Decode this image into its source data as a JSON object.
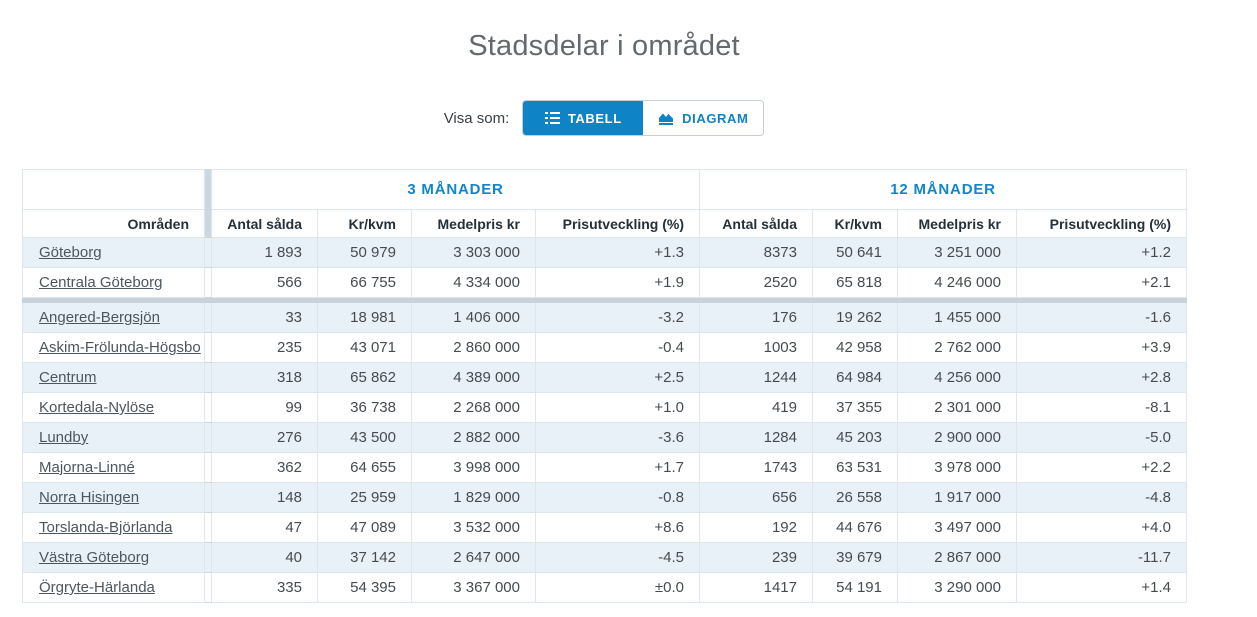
{
  "page": {
    "title": "Stadsdelar i området"
  },
  "controls": {
    "label": "Visa som:",
    "buttons": [
      {
        "label": "TABELL",
        "icon": "list-icon",
        "active": true
      },
      {
        "label": "DIAGRAM",
        "icon": "area-chart-icon",
        "active": false
      }
    ]
  },
  "colors": {
    "accent_blue": "#0e83c5",
    "row_alt_background": "#e9f1f8",
    "divider_gray": "#ccd8e1",
    "title_gray": "#63696f"
  },
  "table": {
    "row_header": "Områden",
    "group_headers": [
      "3 MÅNADER",
      "12 MÅNADER"
    ],
    "column_headers": [
      "Antal sålda",
      "Kr/kvm",
      "Medelpris kr",
      "Prisutveckling (%)"
    ],
    "summary_rows": [
      {
        "name": "Göteborg",
        "m3": [
          "1 893",
          "50 979",
          "3 303 000",
          "+1.3"
        ],
        "m12": [
          "8373",
          "50 641",
          "3 251 000",
          "+1.2"
        ]
      },
      {
        "name": "Centrala Göteborg",
        "m3": [
          "566",
          "66 755",
          "4 334 000",
          "+1.9"
        ],
        "m12": [
          "2520",
          "65 818",
          "4 246 000",
          "+2.1"
        ]
      }
    ],
    "district_rows": [
      {
        "name": "Angered-Bergsjön",
        "m3": [
          "33",
          "18 981",
          "1 406 000",
          "-3.2"
        ],
        "m12": [
          "176",
          "19 262",
          "1 455 000",
          "-1.6"
        ]
      },
      {
        "name": "Askim-Frölunda-Högsbo",
        "m3": [
          "235",
          "43 071",
          "2 860 000",
          "-0.4"
        ],
        "m12": [
          "1003",
          "42 958",
          "2 762 000",
          "+3.9"
        ]
      },
      {
        "name": "Centrum",
        "m3": [
          "318",
          "65 862",
          "4 389 000",
          "+2.5"
        ],
        "m12": [
          "1244",
          "64 984",
          "4 256 000",
          "+2.8"
        ]
      },
      {
        "name": "Kortedala-Nylöse",
        "m3": [
          "99",
          "36 738",
          "2 268 000",
          "+1.0"
        ],
        "m12": [
          "419",
          "37 355",
          "2 301 000",
          "-8.1"
        ]
      },
      {
        "name": "Lundby",
        "m3": [
          "276",
          "43 500",
          "2 882 000",
          "-3.6"
        ],
        "m12": [
          "1284",
          "45 203",
          "2 900 000",
          "-5.0"
        ]
      },
      {
        "name": "Majorna-Linné",
        "m3": [
          "362",
          "64 655",
          "3 998 000",
          "+1.7"
        ],
        "m12": [
          "1743",
          "63 531",
          "3 978 000",
          "+2.2"
        ]
      },
      {
        "name": "Norra Hisingen",
        "m3": [
          "148",
          "25 959",
          "1 829 000",
          "-0.8"
        ],
        "m12": [
          "656",
          "26 558",
          "1 917 000",
          "-4.8"
        ]
      },
      {
        "name": "Torslanda-Björlanda",
        "m3": [
          "47",
          "47 089",
          "3 532 000",
          "+8.6"
        ],
        "m12": [
          "192",
          "44 676",
          "3 497 000",
          "+4.0"
        ]
      },
      {
        "name": "Västra Göteborg",
        "m3": [
          "40",
          "37 142",
          "2 647 000",
          "-4.5"
        ],
        "m12": [
          "239",
          "39 679",
          "2 867 000",
          "-11.7"
        ]
      },
      {
        "name": "Örgryte-Härlanda",
        "m3": [
          "335",
          "54 395",
          "3 367 000",
          "±0.0"
        ],
        "m12": [
          "1417",
          "54 191",
          "3 290 000",
          "+1.4"
        ]
      }
    ]
  }
}
